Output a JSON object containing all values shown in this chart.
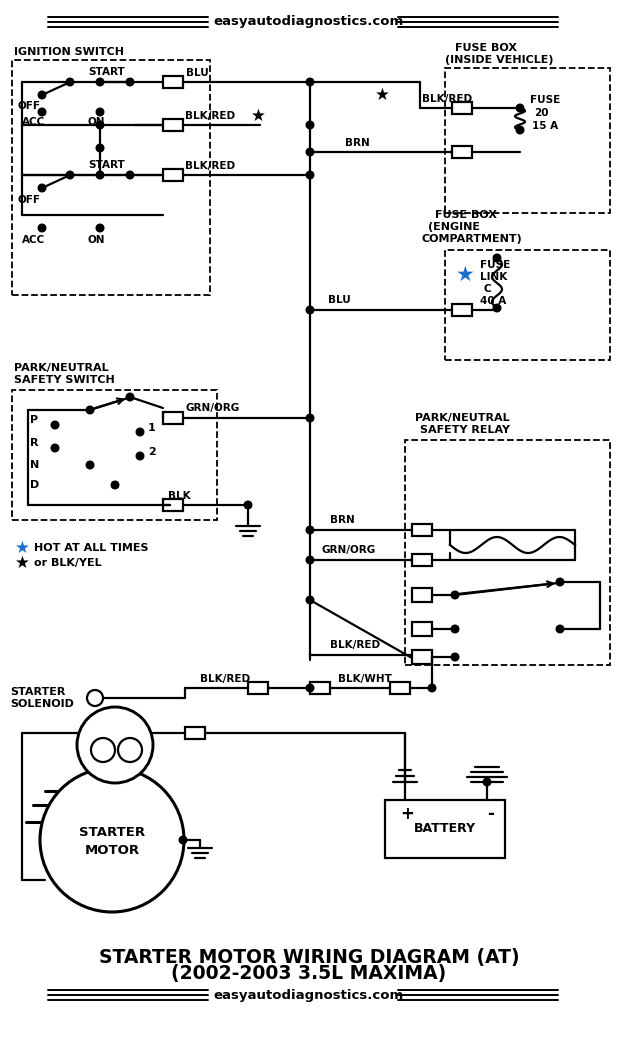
{
  "title_line1": "STARTER MOTOR WIRING DIAGRAM (AT)",
  "title_line2": "(2002-2003 3.5L MAXIMA)",
  "website": "easyautodiagnostics.com",
  "bg_color": "#ffffff",
  "lc": "#000000",
  "blue_color": "#1a6fcc",
  "lw": 1.6,
  "fig_w": 6.18,
  "fig_h": 10.5,
  "dpi": 100
}
